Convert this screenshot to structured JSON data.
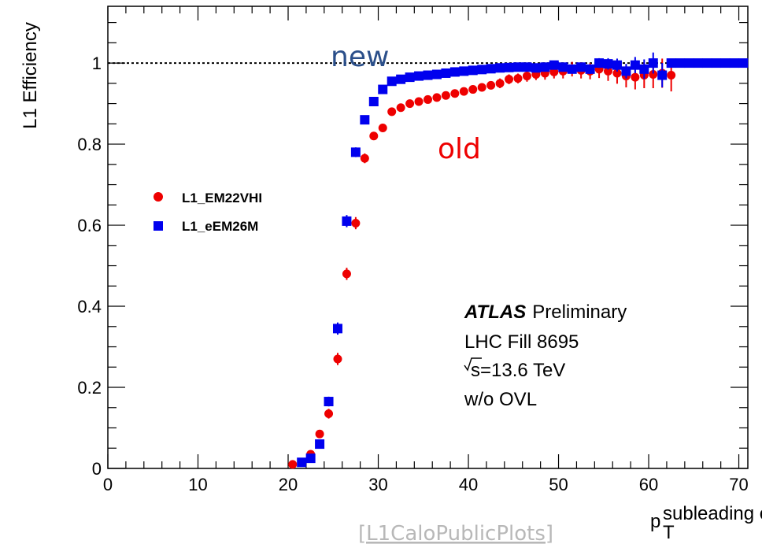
{
  "chart_data": {
    "type": "scatter",
    "xlabel": "p",
    "xlabel_sub": "T",
    "xlabel_sup": "subleading e",
    "ylabel": "L1 Efficiency",
    "xlim": [
      0,
      71
    ],
    "ylim": [
      0,
      1.14
    ],
    "x_ticks": [
      "0",
      "10",
      "20",
      "30",
      "40",
      "50",
      "60",
      "70"
    ],
    "y_ticks": [
      "0",
      "0.2",
      "0.4",
      "0.6",
      "0.8",
      "1"
    ],
    "reference_line": 1,
    "legend_position": "center-left",
    "series": [
      {
        "name": "L1_EM22VHI",
        "marker": "circle",
        "color": "#ee0000",
        "points": [
          [
            20.5,
            0.01
          ],
          [
            21.5,
            0.015
          ],
          [
            22.5,
            0.035
          ],
          [
            23.5,
            0.085
          ],
          [
            24.5,
            0.135
          ],
          [
            25.5,
            0.27
          ],
          [
            26.5,
            0.48
          ],
          [
            27.5,
            0.605
          ],
          [
            28.5,
            0.765
          ],
          [
            29.5,
            0.82
          ],
          [
            30.5,
            0.84
          ],
          [
            31.5,
            0.88
          ],
          [
            32.5,
            0.89
          ],
          [
            33.5,
            0.9
          ],
          [
            34.5,
            0.905
          ],
          [
            35.5,
            0.91
          ],
          [
            36.5,
            0.915
          ],
          [
            37.5,
            0.92
          ],
          [
            38.5,
            0.925
          ],
          [
            39.5,
            0.93
          ],
          [
            40.5,
            0.935
          ],
          [
            41.5,
            0.94
          ],
          [
            42.5,
            0.945
          ],
          [
            43.5,
            0.95
          ],
          [
            44.5,
            0.96
          ],
          [
            45.5,
            0.962
          ],
          [
            46.5,
            0.968
          ],
          [
            47.5,
            0.972
          ],
          [
            48.5,
            0.975
          ],
          [
            49.5,
            0.978
          ],
          [
            50.5,
            0.98
          ],
          [
            51.5,
            0.985
          ],
          [
            52.5,
            0.982
          ],
          [
            53.5,
            0.98
          ],
          [
            54.5,
            0.985
          ],
          [
            55.5,
            0.98
          ],
          [
            56.5,
            0.975
          ],
          [
            57.5,
            0.968
          ],
          [
            58.5,
            0.965
          ],
          [
            59.5,
            0.97
          ],
          [
            60.5,
            0.972
          ],
          [
            61.5,
            0.975
          ],
          [
            62.5,
            0.97
          ]
        ],
        "errors": [
          0.005,
          0.006,
          0.008,
          0.01,
          0.012,
          0.015,
          0.015,
          0.015,
          0.012,
          0.01,
          0.01,
          0.01,
          0.01,
          0.01,
          0.01,
          0.01,
          0.01,
          0.01,
          0.01,
          0.01,
          0.01,
          0.01,
          0.01,
          0.012,
          0.012,
          0.012,
          0.014,
          0.014,
          0.016,
          0.016,
          0.018,
          0.018,
          0.02,
          0.02,
          0.022,
          0.024,
          0.026,
          0.028,
          0.03,
          0.032,
          0.034,
          0.036,
          0.04
        ]
      },
      {
        "name": "L1_eEM26M",
        "marker": "square",
        "color": "#0000ee",
        "points": [
          [
            21.5,
            0.015
          ],
          [
            22.5,
            0.025
          ],
          [
            23.5,
            0.06
          ],
          [
            24.5,
            0.165
          ],
          [
            25.5,
            0.345
          ],
          [
            26.5,
            0.61
          ],
          [
            27.5,
            0.78
          ],
          [
            28.5,
            0.86
          ],
          [
            29.5,
            0.905
          ],
          [
            30.5,
            0.935
          ],
          [
            31.5,
            0.955
          ],
          [
            32.5,
            0.96
          ],
          [
            33.5,
            0.965
          ],
          [
            34.5,
            0.968
          ],
          [
            35.5,
            0.97
          ],
          [
            36.5,
            0.972
          ],
          [
            37.5,
            0.975
          ],
          [
            38.5,
            0.978
          ],
          [
            39.5,
            0.98
          ],
          [
            40.5,
            0.982
          ],
          [
            41.5,
            0.984
          ],
          [
            42.5,
            0.986
          ],
          [
            43.5,
            0.988
          ],
          [
            44.5,
            0.989
          ],
          [
            45.5,
            0.99
          ],
          [
            46.5,
            0.99
          ],
          [
            47.5,
            0.988
          ],
          [
            48.5,
            0.99
          ],
          [
            49.5,
            0.995
          ],
          [
            50.5,
            0.99
          ],
          [
            51.5,
            0.985
          ],
          [
            52.5,
            0.99
          ],
          [
            53.5,
            0.985
          ],
          [
            54.5,
            1.0
          ],
          [
            55.5,
            0.998
          ],
          [
            56.5,
            0.995
          ],
          [
            57.5,
            0.98
          ],
          [
            58.5,
            0.995
          ],
          [
            59.5,
            0.985
          ],
          [
            60.5,
            1.0
          ],
          [
            61.5,
            0.97
          ],
          [
            62.5,
            1.0
          ],
          [
            63.5,
            1.0
          ],
          [
            64.5,
            1.0
          ],
          [
            65.5,
            1.0
          ],
          [
            66.5,
            1.0
          ],
          [
            67.5,
            1.0
          ],
          [
            68.5,
            1.0
          ],
          [
            69.5,
            1.0
          ],
          [
            70.5,
            1.0
          ]
        ],
        "errors": [
          0.005,
          0.006,
          0.008,
          0.012,
          0.015,
          0.015,
          0.012,
          0.01,
          0.008,
          0.006,
          0.005,
          0.005,
          0.005,
          0.005,
          0.005,
          0.005,
          0.005,
          0.005,
          0.005,
          0.005,
          0.005,
          0.005,
          0.006,
          0.006,
          0.006,
          0.006,
          0.007,
          0.007,
          0.008,
          0.008,
          0.009,
          0.01,
          0.012,
          0.012,
          0.014,
          0.016,
          0.018,
          0.02,
          0.024,
          0.026,
          0.03,
          0.002,
          0.002,
          0.002,
          0.002,
          0.002,
          0.002,
          0.002,
          0.002,
          0.002
        ]
      }
    ],
    "annotations": {
      "new_label": "new",
      "new_color": "#2b4f8a",
      "old_label": "old",
      "old_color": "#ee0000",
      "atlas": "ATLAS",
      "preliminary": "Preliminary",
      "fill": "LHC Fill 8695",
      "energy_root": "s",
      "energy_value": "=13.6 TeV",
      "ovl": "w/o OVL"
    }
  },
  "source": {
    "link_text": "[L1CaloPublicPlots]"
  }
}
